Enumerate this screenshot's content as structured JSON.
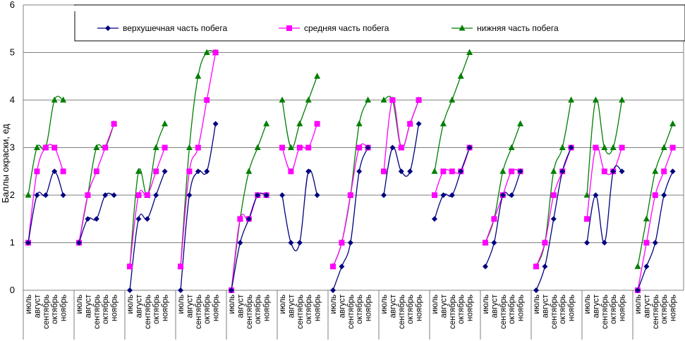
{
  "chart_data": {
    "type": "line",
    "ylabel": "Баллы окраски, ед",
    "ylim": [
      0,
      6
    ],
    "yticks": [
      0,
      1,
      2,
      3,
      4,
      5,
      6
    ],
    "grid": true,
    "legend_position": "top",
    "month_labels": [
      "июль",
      "август",
      "сентябрь",
      "октябрь",
      "ноябрь"
    ],
    "groups": 13,
    "series": [
      {
        "name": "верхушечная часть побега",
        "color": "#00007f",
        "marker": "diamond",
        "values": [
          [
            1,
            2,
            2,
            2.5,
            2
          ],
          [
            1,
            1.5,
            1.5,
            2,
            2
          ],
          [
            0,
            1.5,
            1.5,
            2,
            2.5
          ],
          [
            0,
            2,
            2.5,
            2.5,
            3.5
          ],
          [
            0,
            1,
            1.5,
            2,
            2
          ],
          [
            2,
            1,
            1,
            2.5,
            2
          ],
          [
            0,
            0.5,
            1,
            2.5,
            3
          ],
          [
            2,
            3,
            2.5,
            2.5,
            3.5
          ],
          [
            1.5,
            2,
            2,
            2.5,
            3
          ],
          [
            0.5,
            1,
            2,
            2,
            2.5
          ],
          [
            0,
            0.5,
            1.5,
            2.5,
            3
          ],
          [
            1,
            2,
            1,
            2.5,
            2.5
          ],
          [
            0,
            0.5,
            1,
            2,
            2.5
          ]
        ]
      },
      {
        "name": "средняя часть побега",
        "color": "#ff00ff",
        "marker": "square",
        "values": [
          [
            1,
            2.5,
            3,
            3,
            2.5
          ],
          [
            1,
            2,
            2.5,
            3,
            3.5
          ],
          [
            0.5,
            2,
            2,
            2.5,
            3
          ],
          [
            0.5,
            2.5,
            3,
            4,
            5
          ],
          [
            0,
            1.5,
            1.5,
            2,
            2
          ],
          [
            3,
            2.5,
            3,
            3,
            3.5
          ],
          [
            0.5,
            1,
            2,
            3,
            3
          ],
          [
            2.5,
            4,
            3,
            3.5,
            4
          ],
          [
            2,
            2.5,
            2.5,
            2.5,
            3
          ],
          [
            1,
            1.5,
            2,
            2.5,
            2.5
          ],
          [
            0.5,
            1,
            2,
            2.5,
            3
          ],
          [
            1.5,
            3,
            2.5,
            2.5,
            3
          ],
          [
            0,
            1,
            2,
            2.5,
            3
          ]
        ]
      },
      {
        "name": "нижняя часть побега",
        "color": "#007f00",
        "marker": "triangle",
        "values": [
          [
            2,
            3,
            3,
            4,
            4
          ],
          [
            1,
            2,
            3,
            3,
            3.5
          ],
          [
            0.5,
            2.5,
            2,
            3,
            3.5
          ],
          [
            0.5,
            3,
            4.5,
            5,
            5
          ],
          [
            0,
            1.5,
            2.5,
            3,
            3.5
          ],
          [
            4,
            3,
            3.5,
            4,
            4.5
          ],
          [
            0.5,
            1,
            2,
            3.5,
            4
          ],
          [
            4,
            4,
            3,
            3.5,
            4
          ],
          [
            2.5,
            3.5,
            4,
            4.5,
            5
          ],
          [
            1,
            1.5,
            2.5,
            3,
            3.5
          ],
          [
            0.5,
            1,
            2.5,
            3,
            4
          ],
          [
            2,
            4,
            3,
            3,
            4
          ],
          [
            0.5,
            1.5,
            2.5,
            3,
            3.5
          ]
        ]
      }
    ]
  }
}
